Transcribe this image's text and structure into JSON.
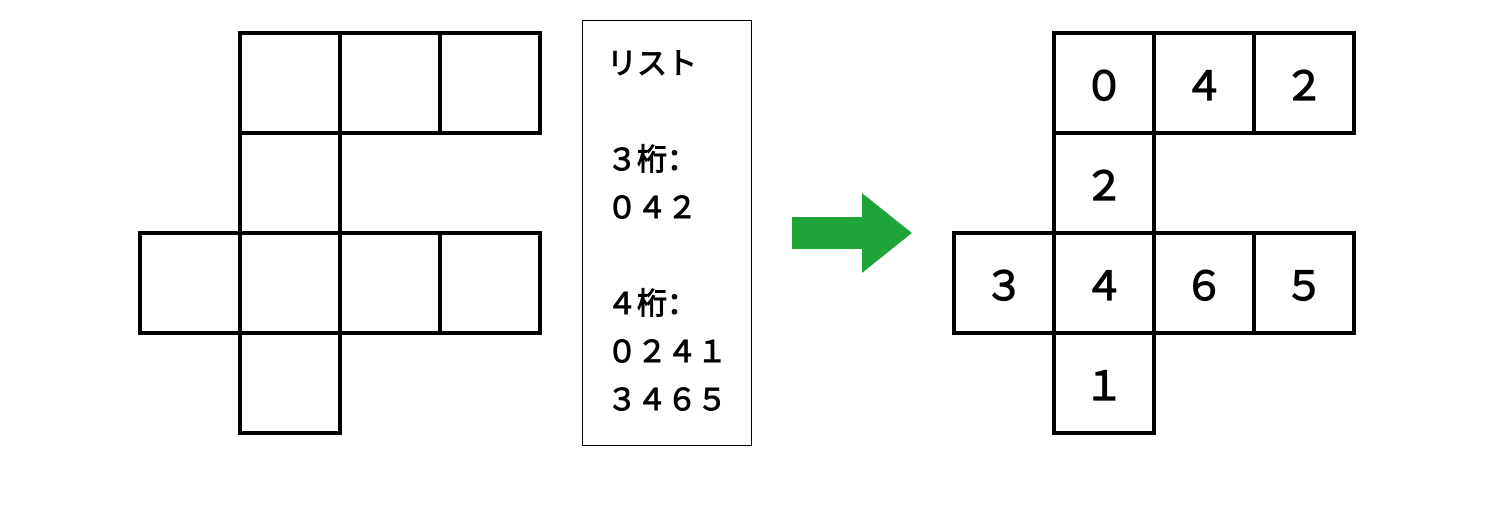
{
  "layout": {
    "cell_size": 100,
    "grid_cols": 4,
    "grid_rows": 4,
    "border_width": 4,
    "border_color": "#000000",
    "background_color": "#ffffff",
    "digit_fontsize": 40,
    "digit_fontweight": "bold",
    "digit_color": "#000000"
  },
  "shape_cells": [
    {
      "row": 0,
      "col": 1
    },
    {
      "row": 0,
      "col": 2
    },
    {
      "row": 0,
      "col": 3
    },
    {
      "row": 1,
      "col": 1
    },
    {
      "row": 2,
      "col": 0
    },
    {
      "row": 2,
      "col": 1
    },
    {
      "row": 2,
      "col": 2
    },
    {
      "row": 2,
      "col": 3
    },
    {
      "row": 3,
      "col": 1
    }
  ],
  "filled_cells": [
    {
      "row": 0,
      "col": 1,
      "value": "０"
    },
    {
      "row": 0,
      "col": 2,
      "value": "４"
    },
    {
      "row": 0,
      "col": 3,
      "value": "２"
    },
    {
      "row": 1,
      "col": 1,
      "value": "２"
    },
    {
      "row": 2,
      "col": 0,
      "value": "３"
    },
    {
      "row": 2,
      "col": 1,
      "value": "４"
    },
    {
      "row": 2,
      "col": 2,
      "value": "６"
    },
    {
      "row": 2,
      "col": 3,
      "value": "５"
    },
    {
      "row": 3,
      "col": 1,
      "value": "１"
    }
  ],
  "list_box": {
    "title": "リスト",
    "groups": [
      {
        "header": "３桁：",
        "items": [
          "０４２"
        ]
      },
      {
        "header": "４桁：",
        "items": [
          "０２４１",
          "３４６５"
        ]
      }
    ],
    "border_color": "#000000",
    "border_width": 1,
    "fontsize": 30,
    "fontweight": "bold",
    "text_color": "#000000",
    "background_color": "#ffffff"
  },
  "arrow": {
    "color": "#1fa43a",
    "width": 120,
    "height": 80
  }
}
